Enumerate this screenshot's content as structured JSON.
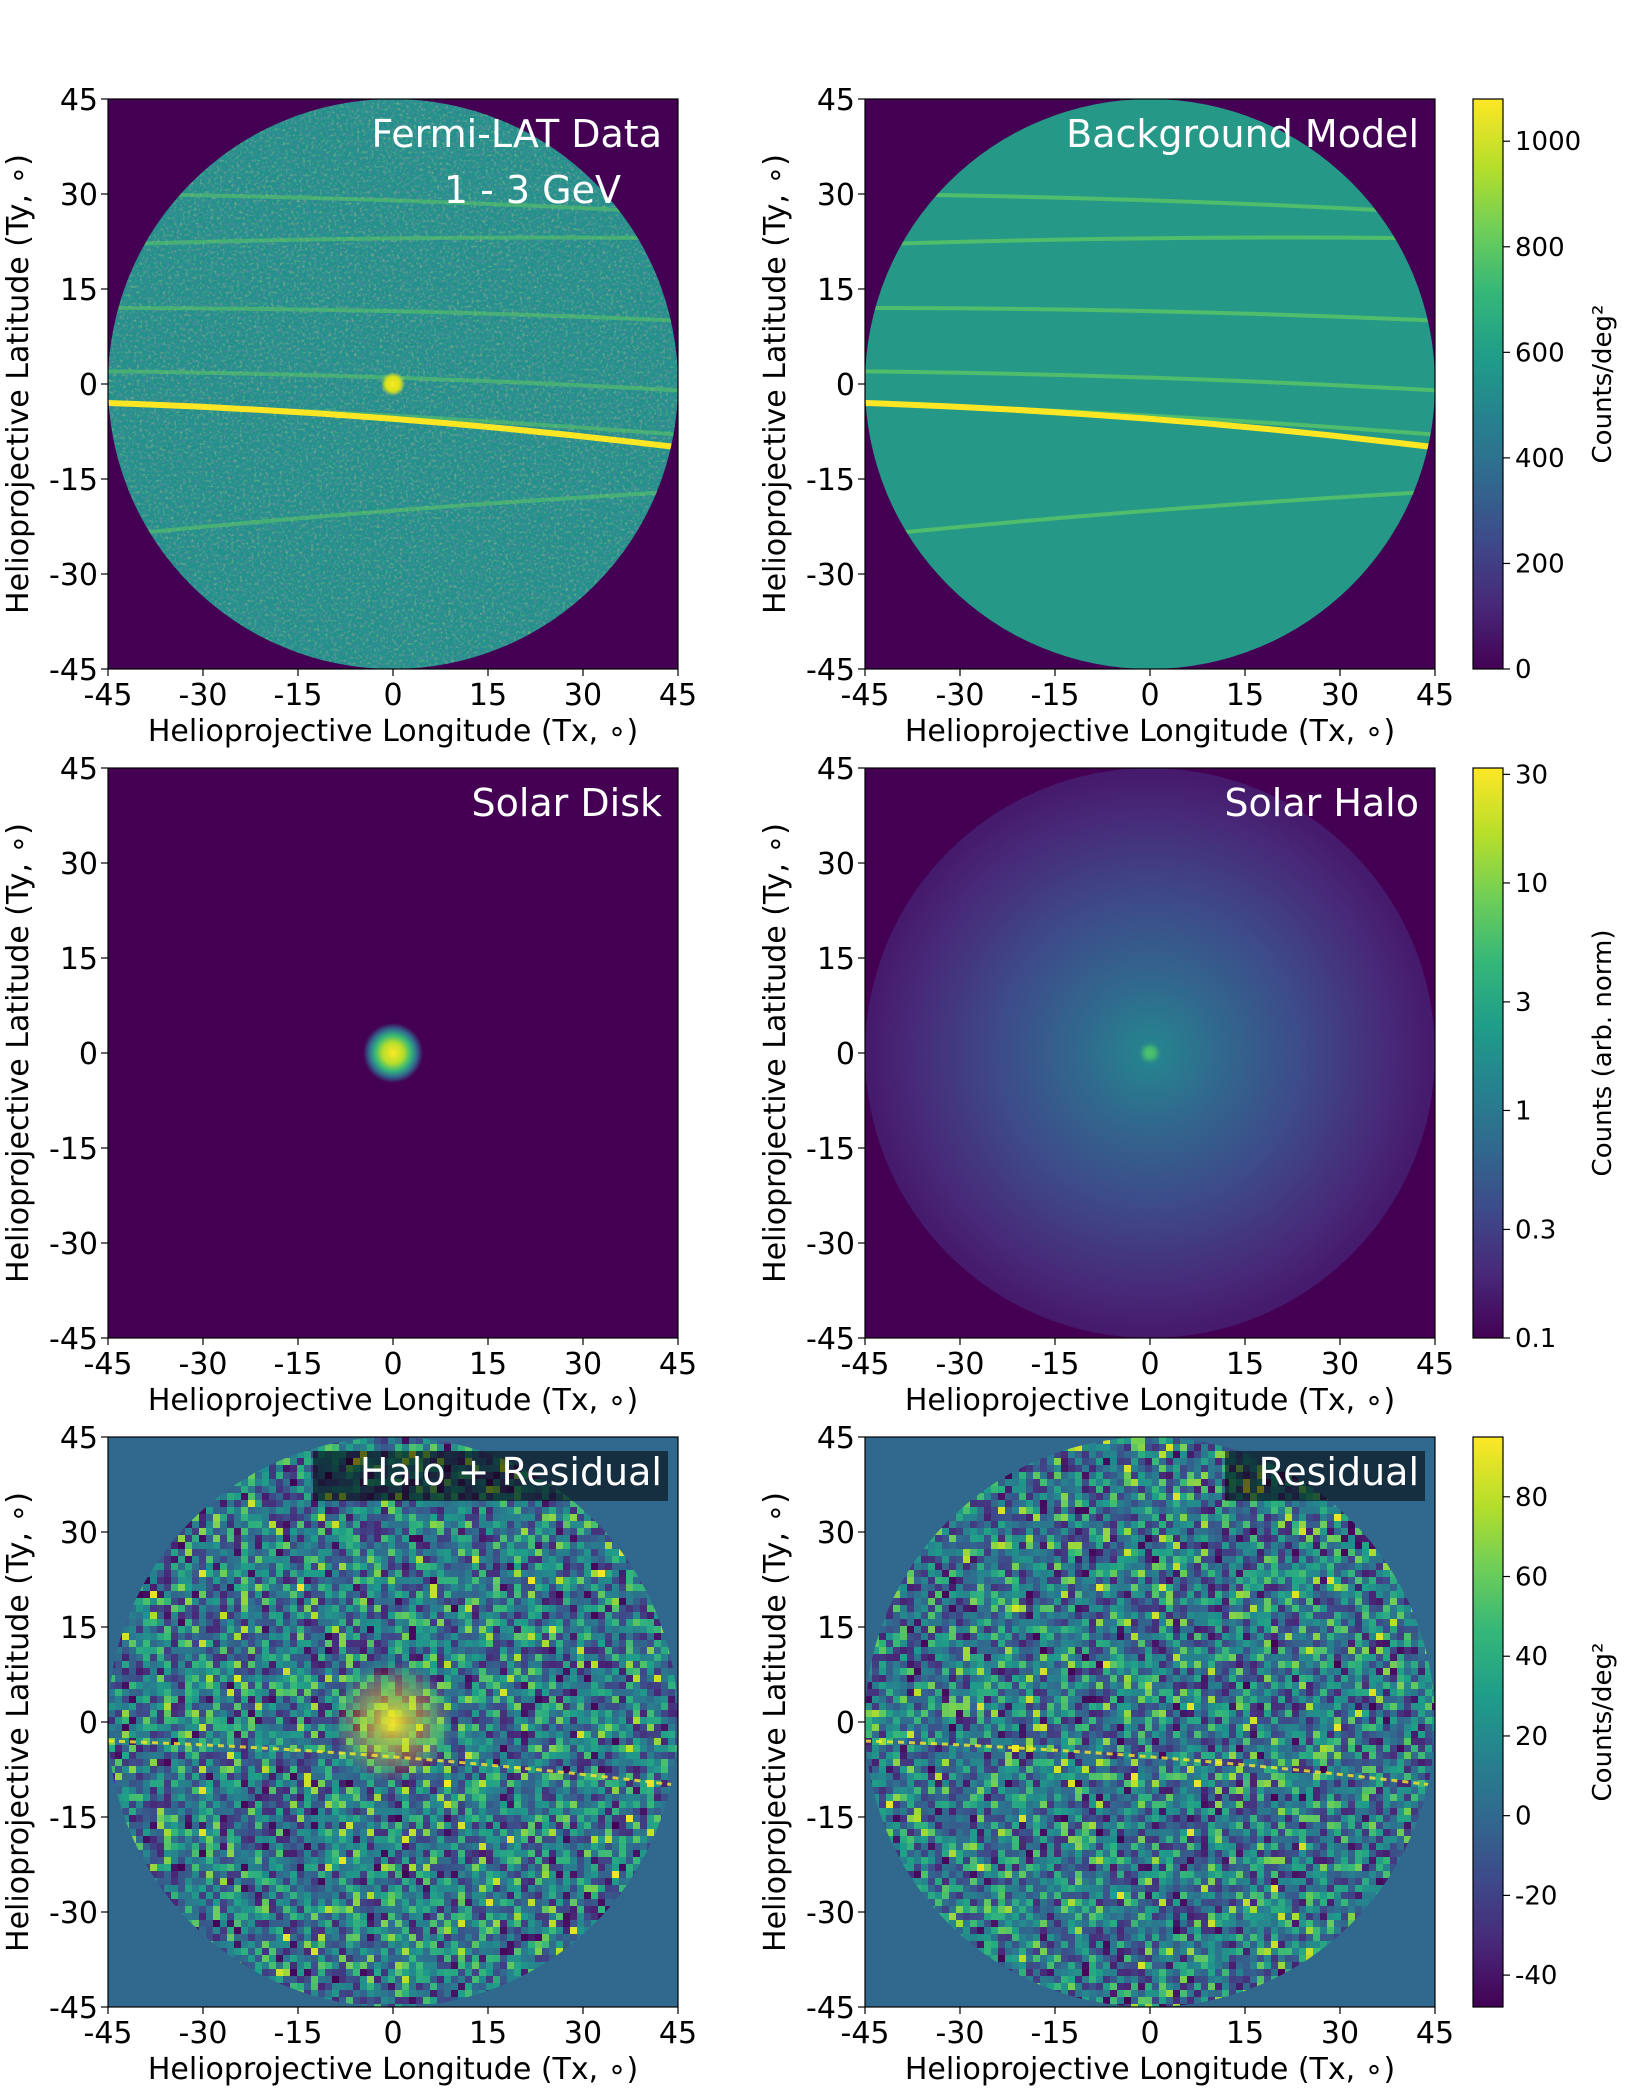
{
  "chart_data": [
    {
      "type": "heatmap",
      "title": "Fermi-LAT Data",
      "subtitle": "1 - 3 GeV",
      "xlabel": "Helioprojective Longitude (Tx, ∘)",
      "ylabel": "Helioprojective Latitude (Ty, ∘)",
      "xlim": [
        -45,
        45
      ],
      "ylim": [
        -45,
        45
      ],
      "xticks": [
        "-45",
        "-30",
        "-15",
        "0",
        "15",
        "30",
        "45"
      ],
      "yticks": [
        "45",
        "30",
        "15",
        "0",
        "-15",
        "-30",
        "-45"
      ],
      "mask_radius_deg": 45,
      "sun_position": [
        0,
        0
      ],
      "bright_band_y": [
        -3,
        -6,
        -10
      ],
      "colorscale_shared_with": "Background Model"
    },
    {
      "type": "heatmap",
      "title": "Background Model",
      "xlabel": "Helioprojective Longitude (Tx, ∘)",
      "ylabel": "Helioprojective Latitude (Ty, ∘)",
      "xlim": [
        -45,
        45
      ],
      "ylim": [
        -45,
        45
      ],
      "xticks": [
        "-45",
        "-30",
        "-15",
        "0",
        "15",
        "30",
        "45"
      ],
      "yticks": [
        "45",
        "30",
        "15",
        "0",
        "-15",
        "-30",
        "-45"
      ],
      "mask_radius_deg": 45,
      "colorbar": {
        "label": "Counts/deg²",
        "range": [
          0,
          1080
        ],
        "ticks": [
          "0",
          "200",
          "400",
          "600",
          "800",
          "1000"
        ],
        "scale": "linear"
      }
    },
    {
      "type": "heatmap",
      "title": "Solar Disk",
      "xlabel": "Helioprojective Longitude (Tx, ∘)",
      "ylabel": "Helioprojective Latitude (Ty, ∘)",
      "xlim": [
        -45,
        45
      ],
      "ylim": [
        -45,
        45
      ],
      "xticks": [
        "-45",
        "-30",
        "-15",
        "0",
        "15",
        "30",
        "45"
      ],
      "yticks": [
        "45",
        "30",
        "15",
        "0",
        "-15",
        "-30",
        "-45"
      ],
      "source_center": [
        0,
        0
      ],
      "colorscale_shared_with": "Solar Halo"
    },
    {
      "type": "heatmap",
      "title": "Solar Halo",
      "xlabel": "Helioprojective Longitude (Tx, ∘)",
      "ylabel": "Helioprojective Latitude (Ty, ∘)",
      "xlim": [
        -45,
        45
      ],
      "ylim": [
        -45,
        45
      ],
      "xticks": [
        "-45",
        "-30",
        "-15",
        "0",
        "15",
        "30",
        "45"
      ],
      "yticks": [
        "45",
        "30",
        "15",
        "0",
        "-15",
        "-30",
        "-45"
      ],
      "source_center": [
        0,
        0
      ],
      "colorbar": {
        "label": "Counts (arb. norm)",
        "range": [
          0.1,
          32
        ],
        "ticks": [
          "0.1",
          "0.3",
          "1",
          "3",
          "10",
          "30"
        ],
        "scale": "log"
      }
    },
    {
      "type": "heatmap",
      "title": "Halo + Residual",
      "xlabel": "Helioprojective Longitude (Tx, ∘)",
      "ylabel": "Helioprojective Latitude (Ty, ∘)",
      "xlim": [
        -45,
        45
      ],
      "ylim": [
        -45,
        45
      ],
      "xticks": [
        "-45",
        "-30",
        "-15",
        "0",
        "15",
        "30",
        "45"
      ],
      "yticks": [
        "45",
        "30",
        "15",
        "0",
        "-15",
        "-30",
        "-45"
      ],
      "mask_radius_deg": 45,
      "colorscale_shared_with": "Residual"
    },
    {
      "type": "heatmap",
      "title": "Residual",
      "xlabel": "Helioprojective Longitude (Tx, ∘)",
      "ylabel": "Helioprojective Latitude (Ty, ∘)",
      "xlim": [
        -45,
        45
      ],
      "ylim": [
        -45,
        45
      ],
      "xticks": [
        "-45",
        "-30",
        "-15",
        "0",
        "15",
        "30",
        "45"
      ],
      "yticks": [
        "45",
        "30",
        "15",
        "0",
        "-15",
        "-30",
        "-45"
      ],
      "mask_radius_deg": 45,
      "colorbar": {
        "label": "Counts/deg²",
        "range": [
          -48,
          95
        ],
        "ticks": [
          "-40",
          "-20",
          "0",
          "20",
          "40",
          "60",
          "80"
        ],
        "scale": "linear"
      }
    }
  ],
  "colormap": {
    "name": "viridis",
    "stops": [
      "#440154",
      "#482878",
      "#3e4989",
      "#31688e",
      "#26828e",
      "#1f9e89",
      "#35b779",
      "#6ece58",
      "#b5de2b",
      "#fde725"
    ]
  }
}
